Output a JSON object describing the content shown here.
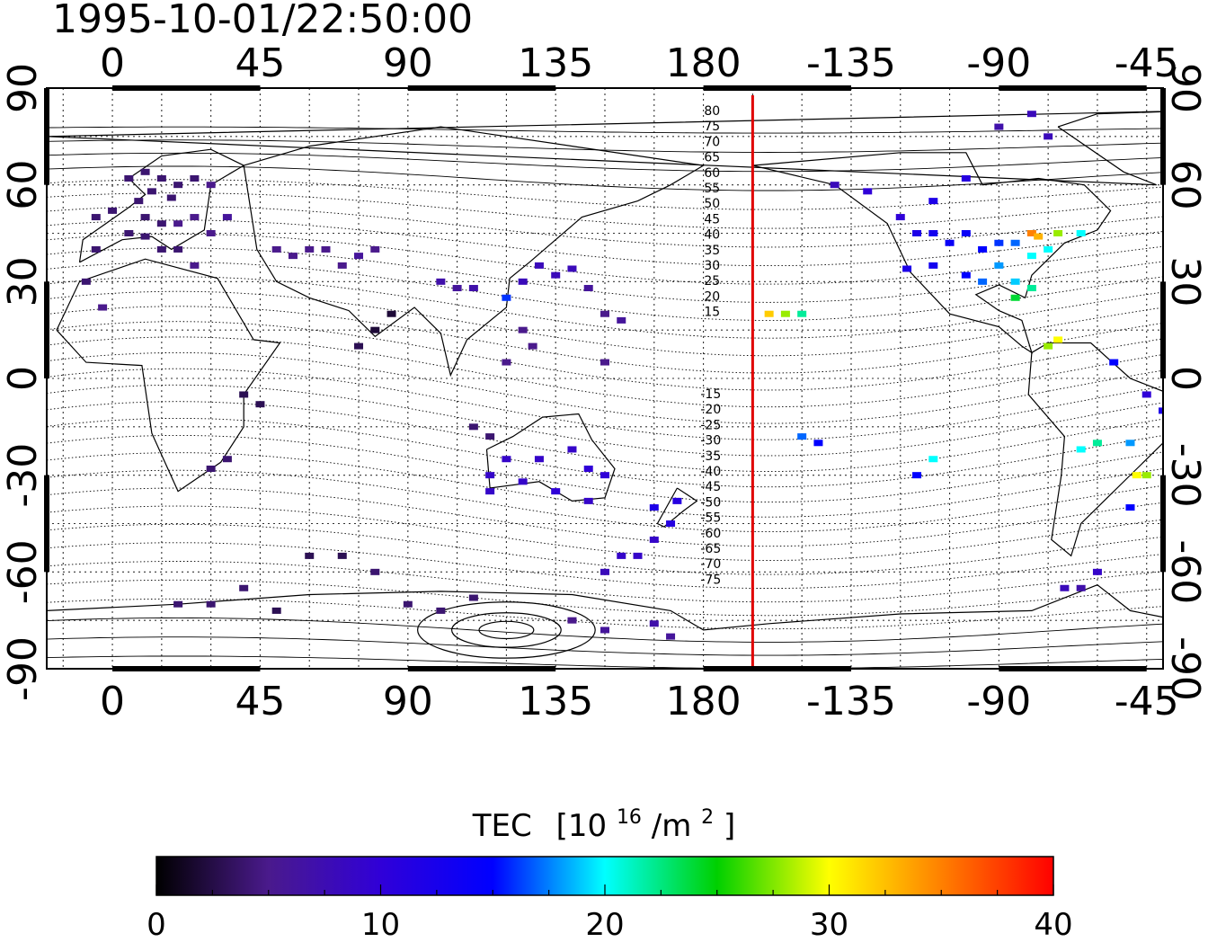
{
  "timestamp": "1995-10-01/22:50:00",
  "lon_ticks": [
    "0",
    "45",
    "90",
    "135",
    "180",
    "-135",
    "-90",
    "-45"
  ],
  "lat_ticks": [
    "90",
    "60",
    "30",
    "0",
    "-30",
    "-60",
    "-90"
  ],
  "map": {
    "lon_range": [
      -20,
      320
    ],
    "lat_range": [
      -90,
      90
    ],
    "terminator_longitude": -165,
    "terminator_color": "#e00000",
    "contour_labels_upper": [
      "80",
      "75",
      "70",
      "65",
      "60",
      "55",
      "50",
      "45",
      "40",
      "35",
      "30",
      "25",
      "20",
      "15"
    ],
    "contour_labels_lower": [
      "-15",
      "-20",
      "-25",
      "-30",
      "-35",
      "-40",
      "-45",
      "-50",
      "-55",
      "-60",
      "-65",
      "-70",
      "-75"
    ]
  },
  "colorbar": {
    "title": "TEC",
    "unit_base": "[10",
    "unit_exp": "16",
    "unit_mid": "/m",
    "unit_exp2": "2",
    "unit_end": "]",
    "min": 0,
    "max": 40,
    "tick_labels": [
      "0",
      "10",
      "20",
      "30",
      "40"
    ],
    "stops": [
      "#000000",
      "#4a1a8c",
      "#3000d8",
      "#0000ff",
      "#00ffff",
      "#00d000",
      "#ffff00",
      "#ff8000",
      "#ff0000"
    ]
  },
  "chart_data": {
    "type": "heatmap",
    "title": "1995-10-01/22:50:00",
    "xlabel": "",
    "ylabel": "",
    "xlim_display": [
      -20,
      320
    ],
    "ylim": [
      -90,
      90
    ],
    "value_label": "TEC [10^16/m^2]",
    "value_range": [
      0,
      40
    ],
    "points_lon_lat_tec": [
      [
        5,
        62,
        4
      ],
      [
        10,
        64,
        4
      ],
      [
        15,
        62,
        4
      ],
      [
        20,
        60,
        4
      ],
      [
        25,
        62,
        4
      ],
      [
        30,
        60,
        5
      ],
      [
        12,
        58,
        4
      ],
      [
        18,
        56,
        4
      ],
      [
        8,
        55,
        4
      ],
      [
        0,
        52,
        4
      ],
      [
        -5,
        50,
        4
      ],
      [
        10,
        50,
        4
      ],
      [
        15,
        48,
        4
      ],
      [
        20,
        48,
        5
      ],
      [
        25,
        50,
        5
      ],
      [
        5,
        45,
        4
      ],
      [
        10,
        44,
        4
      ],
      [
        15,
        40,
        4
      ],
      [
        20,
        40,
        4
      ],
      [
        -5,
        40,
        4
      ],
      [
        25,
        35,
        5
      ],
      [
        30,
        45,
        5
      ],
      [
        35,
        50,
        6
      ],
      [
        -8,
        30,
        4
      ],
      [
        -3,
        22,
        5
      ],
      [
        50,
        40,
        5
      ],
      [
        55,
        38,
        5
      ],
      [
        60,
        40,
        5
      ],
      [
        65,
        40,
        5
      ],
      [
        70,
        35,
        5
      ],
      [
        75,
        38,
        6
      ],
      [
        80,
        40,
        5
      ],
      [
        40,
        -5,
        3
      ],
      [
        45,
        -8,
        3
      ],
      [
        30,
        -28,
        4
      ],
      [
        35,
        -25,
        4
      ],
      [
        110,
        -15,
        4
      ],
      [
        115,
        -18,
        4
      ],
      [
        100,
        30,
        7
      ],
      [
        105,
        28,
        6
      ],
      [
        110,
        28,
        7
      ],
      [
        120,
        25,
        16
      ],
      [
        125,
        30,
        8
      ],
      [
        130,
        35,
        8
      ],
      [
        135,
        32,
        8
      ],
      [
        140,
        34,
        8
      ],
      [
        145,
        28,
        6
      ],
      [
        150,
        20,
        5
      ],
      [
        155,
        18,
        6
      ],
      [
        125,
        15,
        5
      ],
      [
        128,
        10,
        5
      ],
      [
        120,
        5,
        5
      ],
      [
        150,
        5,
        5
      ],
      [
        85,
        20,
        2
      ],
      [
        80,
        15,
        2
      ],
      [
        75,
        10,
        3
      ],
      [
        115,
        -30,
        9
      ],
      [
        120,
        -25,
        9
      ],
      [
        130,
        -25,
        9
      ],
      [
        140,
        -22,
        9
      ],
      [
        145,
        -28,
        10
      ],
      [
        150,
        -30,
        10
      ],
      [
        135,
        -35,
        10
      ],
      [
        145,
        -38,
        9
      ],
      [
        115,
        -35,
        9
      ],
      [
        125,
        -32,
        9
      ],
      [
        165,
        -40,
        12
      ],
      [
        170,
        -45,
        11
      ],
      [
        172,
        -38,
        11
      ],
      [
        165,
        -50,
        9
      ],
      [
        160,
        -55,
        9
      ],
      [
        150,
        -60,
        8
      ],
      [
        155,
        -55,
        9
      ],
      [
        60,
        -55,
        3
      ],
      [
        70,
        -55,
        3
      ],
      [
        80,
        -60,
        4
      ],
      [
        40,
        -65,
        4
      ],
      [
        30,
        -70,
        4
      ],
      [
        20,
        -70,
        4
      ],
      [
        50,
        -72,
        3
      ],
      [
        90,
        -70,
        4
      ],
      [
        100,
        -72,
        4
      ],
      [
        110,
        -68,
        4
      ],
      [
        140,
        -75,
        5
      ],
      [
        150,
        -78,
        6
      ],
      [
        165,
        -76,
        7
      ],
      [
        170,
        -80,
        6
      ],
      [
        -160,
        20,
        32
      ],
      [
        -155,
        20,
        28
      ],
      [
        -150,
        20,
        22
      ],
      [
        -150,
        -18,
        17
      ],
      [
        -145,
        -20,
        15
      ],
      [
        -115,
        -30,
        15
      ],
      [
        -110,
        -25,
        20
      ],
      [
        -120,
        50,
        10
      ],
      [
        -115,
        45,
        12
      ],
      [
        -110,
        45,
        13
      ],
      [
        -105,
        42,
        14
      ],
      [
        -100,
        45,
        14
      ],
      [
        -95,
        40,
        15
      ],
      [
        -90,
        42,
        16
      ],
      [
        -85,
        42,
        17
      ],
      [
        -80,
        38,
        20
      ],
      [
        -75,
        40,
        20
      ],
      [
        -90,
        35,
        18
      ],
      [
        -85,
        30,
        19
      ],
      [
        -95,
        30,
        17
      ],
      [
        -100,
        32,
        15
      ],
      [
        -110,
        35,
        13
      ],
      [
        -118,
        34,
        12
      ],
      [
        -80,
        28,
        22
      ],
      [
        -85,
        25,
        24
      ],
      [
        -80,
        45,
        35
      ],
      [
        -78,
        44,
        33
      ],
      [
        -72,
        45,
        28
      ],
      [
        -65,
        45,
        20
      ],
      [
        -75,
        10,
        28
      ],
      [
        -72,
        12,
        30
      ],
      [
        -55,
        5,
        15
      ],
      [
        -45,
        -5,
        10
      ],
      [
        -40,
        -10,
        12
      ],
      [
        -60,
        -20,
        22
      ],
      [
        -65,
        -22,
        20
      ],
      [
        -50,
        -20,
        18
      ],
      [
        -48,
        -30,
        30
      ],
      [
        -45,
        -30,
        28
      ],
      [
        -50,
        -40,
        15
      ],
      [
        -60,
        -60,
        9
      ],
      [
        -70,
        -65,
        8
      ],
      [
        -65,
        -65,
        7
      ],
      [
        -140,
        60,
        8
      ],
      [
        -130,
        58,
        10
      ],
      [
        -110,
        55,
        12
      ],
      [
        -100,
        62,
        11
      ],
      [
        -80,
        82,
        8
      ],
      [
        -75,
        75,
        8
      ],
      [
        -90,
        78,
        7
      ]
    ]
  }
}
